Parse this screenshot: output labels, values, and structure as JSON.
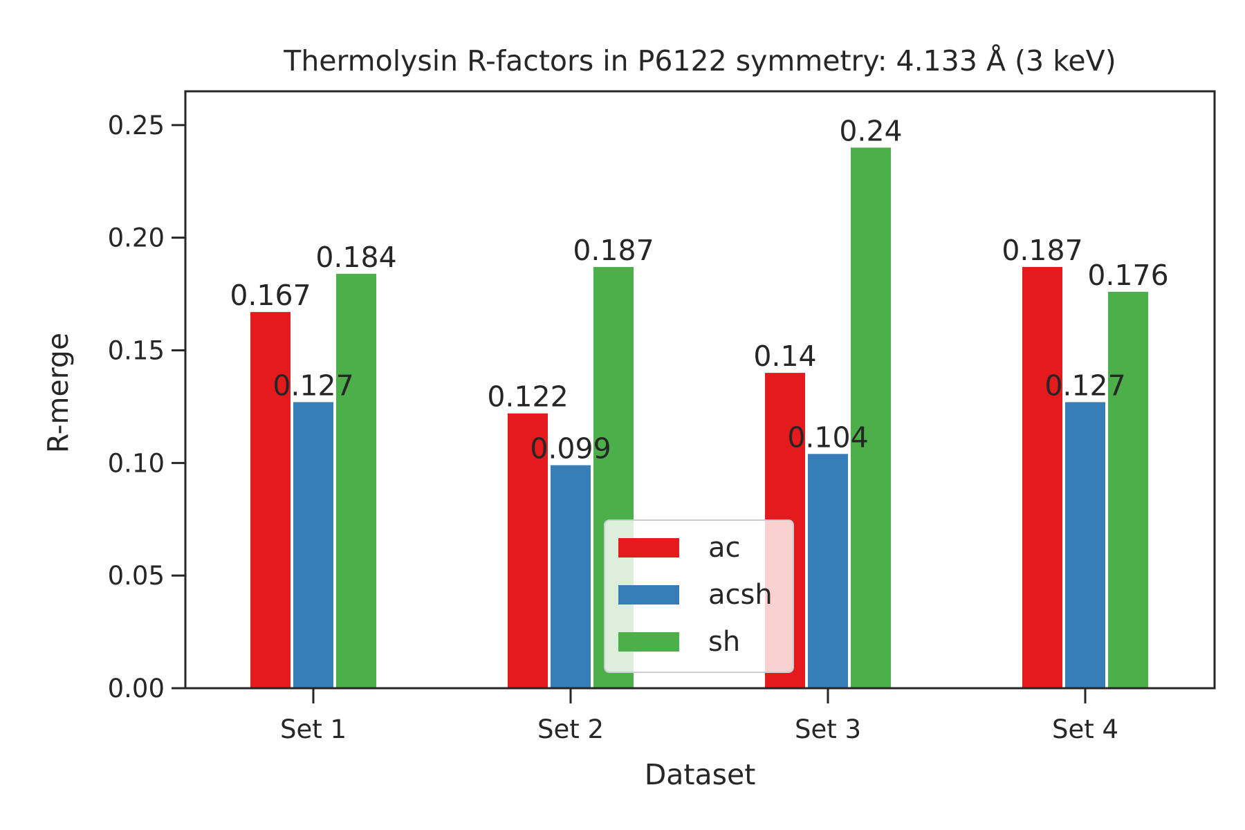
{
  "chart_data": {
    "type": "bar",
    "title": "Thermolysin R-factors in P6122 symmetry: 4.133 Å (3 keV)",
    "xlabel": "Dataset",
    "ylabel": "R-merge",
    "categories": [
      "Set 1",
      "Set 2",
      "Set 3",
      "Set 4"
    ],
    "series": [
      {
        "name": "ac",
        "color": "#e41a1c",
        "values": [
          0.167,
          0.122,
          0.14,
          0.187
        ]
      },
      {
        "name": "acsh",
        "color": "#377eb8",
        "values": [
          0.127,
          0.099,
          0.104,
          0.127
        ]
      },
      {
        "name": "sh",
        "color": "#4daf4a",
        "values": [
          0.184,
          0.187,
          0.24,
          0.176
        ]
      }
    ],
    "ylim": [
      0,
      0.265
    ],
    "yticks": [
      "0.00",
      "0.05",
      "0.10",
      "0.15",
      "0.20",
      "0.25"
    ],
    "grid": false,
    "legend_position": "lower-center"
  }
}
